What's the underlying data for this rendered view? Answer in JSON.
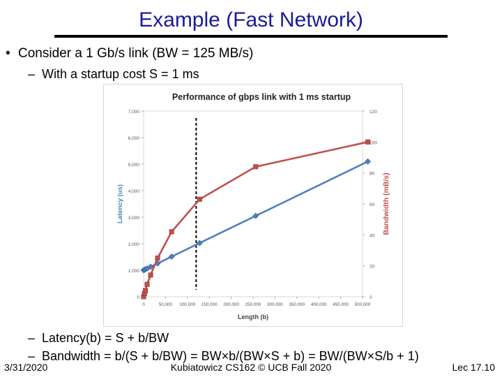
{
  "slide": {
    "title": "Example (Fast Network)",
    "bullet": "Consider a 1 Gb/s link (BW = 125 MB/s)",
    "sub1": "With a startup cost S = 1 ms",
    "formula_latency": "Latency(b) = S + b/BW",
    "formula_bandwidth": "Bandwidth = b/(S + b/BW) = BW×b/(BW×S + b) = BW/(BW×S/b + 1)",
    "footer_date": "3/31/2020",
    "footer_center": "Kubiatowicz CS162 © UCB Fall 2020",
    "footer_right": "Lec 17.10"
  },
  "chart_data": {
    "type": "line",
    "title": "Performance of gbps link with 1 ms startup",
    "xlabel": "Length (b)",
    "ylabel": "Latency (us)",
    "y2label": "Bandwidth (mB/s)",
    "xlim": [
      0,
      500000
    ],
    "ylim": [
      0,
      7000
    ],
    "y2lim": [
      0,
      120
    ],
    "x_ticks": [
      "0",
      "50,000",
      "100,000",
      "150,000",
      "200,000",
      "250,000",
      "300,000",
      "350,000",
      "400,000",
      "450,000",
      "500,000"
    ],
    "y_ticks": [
      "0",
      "1,000",
      "2,000",
      "3,000",
      "4,000",
      "5,000",
      "6,000",
      "7,000"
    ],
    "y2_ticks": [
      "0",
      "20",
      "40",
      "60",
      "80",
      "100",
      "120"
    ],
    "reference_line_x": 120000,
    "colors": {
      "latency": "#4f81bd",
      "bandwidth": "#c0504d"
    },
    "series": [
      {
        "axis": "left",
        "x": [
          0,
          2000,
          4000,
          8000,
          16000,
          32000,
          64000,
          128000,
          256000,
          512000
        ],
        "values": [
          1000,
          1016,
          1032,
          1064,
          1128,
          1256,
          1512,
          2024,
          3048,
          5096
        ]
      },
      {
        "axis": "right",
        "x": [
          0,
          2000,
          4000,
          8000,
          16000,
          32000,
          64000,
          128000,
          256000,
          512000
        ],
        "values": [
          0,
          2,
          4,
          8,
          14,
          25,
          42,
          63,
          84,
          100
        ]
      }
    ]
  }
}
